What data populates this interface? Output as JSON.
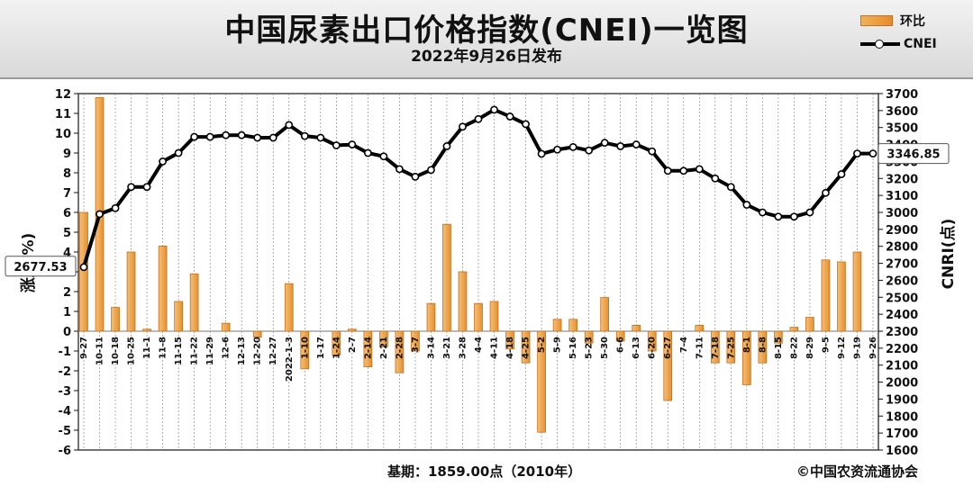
{
  "header": {
    "title": "中国尿素出口价格指数(CNEI)一览图",
    "subtitle": "2022年9月26日发布"
  },
  "legend": {
    "bar_label": "环比",
    "line_label": "CNEI"
  },
  "footer": {
    "base_note": "基期：1859.00点（2010年）",
    "copyright": "©中国农资流通协会"
  },
  "colors": {
    "bar": "#e8902e",
    "bar_light": "#f3c07a",
    "line": "#000000",
    "grid": "#7a7a7a",
    "plot_bg": "#ffffff"
  },
  "chart_data": {
    "type": "bar+line",
    "title": "中国尿素出口价格指数(CNEI)一览图",
    "subtitle": "2022年9月26日发布",
    "left_axis_label": "涨跌(%)",
    "right_axis_label": "CNRI(点)",
    "left_ylim": [
      -6,
      12
    ],
    "left_ticks": [
      -6,
      -5,
      -4,
      -3,
      -2,
      -1,
      0,
      1,
      2,
      3,
      4,
      5,
      6,
      7,
      8,
      9,
      10,
      11,
      12
    ],
    "right_ylim": [
      1600,
      3700
    ],
    "right_ticks": [
      1600,
      1700,
      1800,
      1900,
      2000,
      2100,
      2200,
      2300,
      2400,
      2500,
      2600,
      2700,
      2800,
      2900,
      3000,
      3100,
      3200,
      3300,
      3400,
      3500,
      3600,
      3700
    ],
    "categories": [
      "9-27",
      "10-11",
      "10-18",
      "10-25",
      "11-1",
      "11-8",
      "11-15",
      "11-22",
      "11-29",
      "12-6",
      "12-13",
      "12-20",
      "12-27",
      "2022-1-3",
      "1-10",
      "1-17",
      "1-24",
      "2-7",
      "2-14",
      "2-21",
      "2-28",
      "3-7",
      "3-14",
      "3-21",
      "3-28",
      "4-4",
      "4-11",
      "4-18",
      "4-25",
      "5-2",
      "5-9",
      "5-16",
      "5-23",
      "5-30",
      "6-6",
      "6-13",
      "6-20",
      "6-27",
      "7-4",
      "7-11",
      "7-18",
      "7-25",
      "8-1",
      "8-8",
      "8-15",
      "8-22",
      "8-29",
      "9-5",
      "9-12",
      "9-19",
      "9-26"
    ],
    "series": [
      {
        "name": "环比",
        "type": "bar",
        "axis": "left",
        "values": [
          6.0,
          11.8,
          1.2,
          4.0,
          0.1,
          4.3,
          1.5,
          2.9,
          0.0,
          0.4,
          0.0,
          -0.3,
          0.0,
          2.4,
          -1.9,
          0.0,
          -1.2,
          0.1,
          -1.8,
          -0.8,
          -2.1,
          -1.0,
          1.4,
          5.4,
          3.0,
          1.4,
          1.5,
          -0.9,
          -1.6,
          -5.1,
          0.6,
          0.6,
          -0.6,
          1.7,
          -0.5,
          0.3,
          -1.0,
          -3.5,
          0.0,
          0.3,
          -1.6,
          -1.6,
          -2.7,
          -1.6,
          -0.6,
          0.2,
          0.7,
          3.6,
          3.5,
          4.0,
          0.0
        ]
      },
      {
        "name": "CNEI",
        "type": "line",
        "axis": "right",
        "values": [
          2677.53,
          2990,
          3025,
          3150,
          3150,
          3300,
          3350,
          3445,
          3445,
          3455,
          3455,
          3440,
          3440,
          3515,
          3450,
          3440,
          3395,
          3400,
          3350,
          3330,
          3255,
          3210,
          3250,
          3390,
          3505,
          3550,
          3605,
          3565,
          3520,
          3345,
          3370,
          3385,
          3365,
          3410,
          3390,
          3400,
          3360,
          3245,
          3245,
          3255,
          3200,
          3150,
          3045,
          3000,
          2975,
          2975,
          3000,
          3115,
          3225,
          3346.85,
          3346.85
        ]
      }
    ],
    "annotations": [
      {
        "text": "2677.53",
        "point_index": 0
      },
      {
        "text": "3346.85",
        "point_index": 50
      }
    ],
    "grid": true
  }
}
